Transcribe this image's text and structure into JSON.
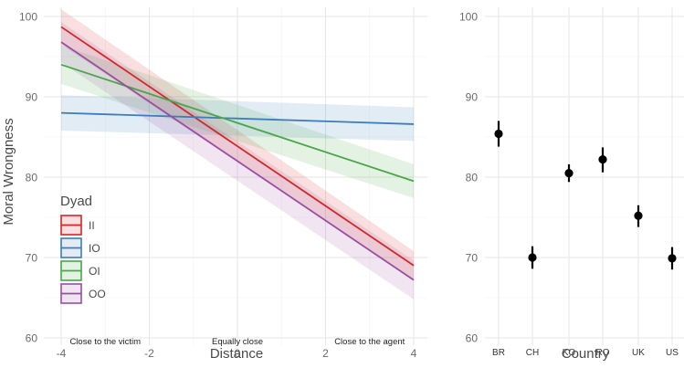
{
  "chart_data": [
    {
      "type": "line",
      "panel": "left",
      "xlabel": "Distance",
      "ylabel": "Moral Wrongness",
      "xlim": [
        -4,
        4
      ],
      "ylim": [
        58.2,
        101.5
      ],
      "x_ticks": [
        -4,
        -2,
        0,
        2,
        4
      ],
      "x_tick_labels": [
        "-4",
        "-2",
        "0",
        "2",
        "4"
      ],
      "y_ticks": [
        60,
        70,
        80,
        90,
        100
      ],
      "y_tick_labels": [
        "60",
        "70",
        "80",
        "90",
        "100"
      ],
      "grid": true,
      "annotations": [
        {
          "text": "Close to the victim",
          "x": -3,
          "y": 60
        },
        {
          "text": "Equally close",
          "x": 0,
          "y": 60
        },
        {
          "text": "Close to the agent",
          "x": 3,
          "y": 60
        }
      ],
      "legend": {
        "title": "Dyad",
        "position": "bottom-left"
      },
      "series": [
        {
          "name": "II",
          "color": "#d62728",
          "x": [
            -4,
            4
          ],
          "values": [
            98.7,
            69.0
          ],
          "ci_lower": [
            96.5,
            67.2
          ],
          "ci_upper": [
            100.9,
            70.8
          ]
        },
        {
          "name": "IO",
          "color": "#3b7dbd",
          "x": [
            -4,
            4
          ],
          "values": [
            88.0,
            86.6
          ],
          "ci_lower": [
            85.8,
            84.5
          ],
          "ci_upper": [
            90.2,
            88.7
          ]
        },
        {
          "name": "OI",
          "color": "#4aa64a",
          "x": [
            -4,
            4
          ],
          "values": [
            94.0,
            79.5
          ],
          "ci_lower": [
            91.6,
            77.4
          ],
          "ci_upper": [
            96.4,
            81.6
          ]
        },
        {
          "name": "OO",
          "color": "#984ea3",
          "x": [
            -4,
            4
          ],
          "values": [
            96.8,
            67.2
          ],
          "ci_lower": [
            94.3,
            64.8
          ],
          "ci_upper": [
            99.3,
            69.6
          ]
        }
      ]
    },
    {
      "type": "scatter",
      "panel": "right",
      "subtype": "point-range",
      "xlabel": "Country",
      "ylabel": "",
      "ylim": [
        58.2,
        101.5
      ],
      "y_ticks": [
        60,
        70,
        80,
        90,
        100
      ],
      "y_tick_labels": [
        "60",
        "70",
        "80",
        "90",
        "100"
      ],
      "grid": true,
      "categories": [
        "BR",
        "CH",
        "KO",
        "RO",
        "UK",
        "US"
      ],
      "values": [
        85.4,
        70.0,
        80.5,
        82.2,
        75.2,
        69.9
      ],
      "err_lower": [
        83.8,
        68.6,
        79.4,
        80.6,
        73.8,
        68.5
      ],
      "err_upper": [
        87.0,
        71.4,
        81.6,
        83.7,
        76.5,
        71.3
      ],
      "point_color": "#000000"
    }
  ]
}
